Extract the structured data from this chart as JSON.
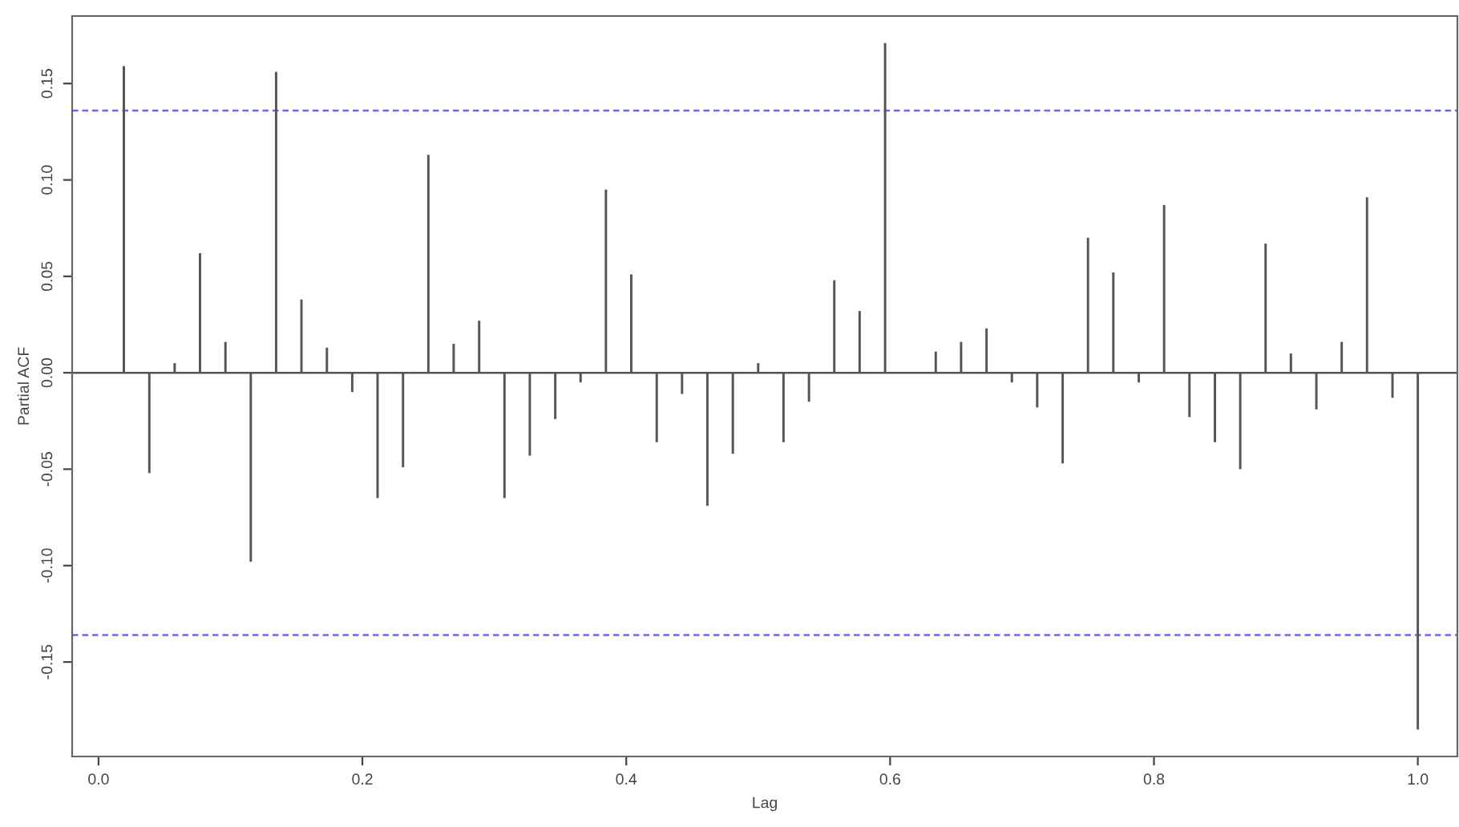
{
  "chart_data": {
    "type": "bar",
    "xlabel": "Lag",
    "ylabel": "Partial ACF",
    "x": [
      0.0192,
      0.0385,
      0.0577,
      0.0769,
      0.0962,
      0.1154,
      0.1346,
      0.1538,
      0.1731,
      0.1923,
      0.2115,
      0.2308,
      0.25,
      0.2692,
      0.2885,
      0.3077,
      0.3269,
      0.3462,
      0.3654,
      0.3846,
      0.4038,
      0.4231,
      0.4423,
      0.4615,
      0.4808,
      0.5,
      0.5192,
      0.5385,
      0.5577,
      0.5769,
      0.5962,
      0.6154,
      0.6346,
      0.6538,
      0.6731,
      0.6923,
      0.7115,
      0.7308,
      0.75,
      0.7692,
      0.7885,
      0.8077,
      0.8269,
      0.8462,
      0.8654,
      0.8846,
      0.9038,
      0.9231,
      0.9423,
      0.9615,
      0.9808,
      1.0
    ],
    "values": [
      0.159,
      -0.052,
      0.005,
      0.062,
      0.016,
      -0.098,
      0.156,
      0.038,
      0.013,
      -0.01,
      -0.065,
      -0.049,
      0.113,
      0.015,
      0.027,
      -0.065,
      -0.043,
      -0.024,
      -0.005,
      0.095,
      0.051,
      -0.036,
      -0.011,
      -0.069,
      -0.042,
      0.005,
      -0.036,
      -0.015,
      0.048,
      0.032,
      0.171,
      null,
      0.011,
      0.016,
      0.023,
      -0.005,
      -0.018,
      -0.047,
      0.07,
      0.052,
      -0.005,
      0.087,
      -0.023,
      -0.036,
      -0.05,
      0.067,
      0.01,
      -0.019,
      0.016,
      0.091,
      -0.013,
      -0.185
    ],
    "color": "#555555",
    "xlim": [
      -0.02,
      1.03
    ],
    "ylim": [
      -0.199,
      0.185
    ],
    "xticks": [
      {
        "value": 0,
        "label": "0.0"
      },
      {
        "value": 0.2,
        "label": "0.2"
      },
      {
        "value": 0.4,
        "label": "0.4"
      },
      {
        "value": 0.6,
        "label": "0.6"
      },
      {
        "value": 0.8,
        "label": "0.8"
      },
      {
        "value": 1,
        "label": "1.0"
      }
    ],
    "yticks": [
      {
        "value": -0.15,
        "label": "-0.15"
      },
      {
        "value": -0.1,
        "label": "-0.10"
      },
      {
        "value": -0.05,
        "label": "-0.05"
      },
      {
        "value": 0,
        "label": "0.00"
      },
      {
        "value": 0.05,
        "label": "0.05"
      },
      {
        "value": 0.1,
        "label": "0.10"
      },
      {
        "value": 0.15,
        "label": "0.15"
      }
    ],
    "ref_lines": [
      {
        "axis": "y",
        "value": 0,
        "color": "#555555",
        "line_style": "solid"
      },
      {
        "axis": "y",
        "value": 0.136,
        "color": "#6666ff",
        "line_style": "dashed"
      },
      {
        "axis": "y",
        "value": -0.136,
        "color": "#6666ff",
        "line_style": "dashed"
      }
    ],
    "grid": false,
    "legend": false
  }
}
